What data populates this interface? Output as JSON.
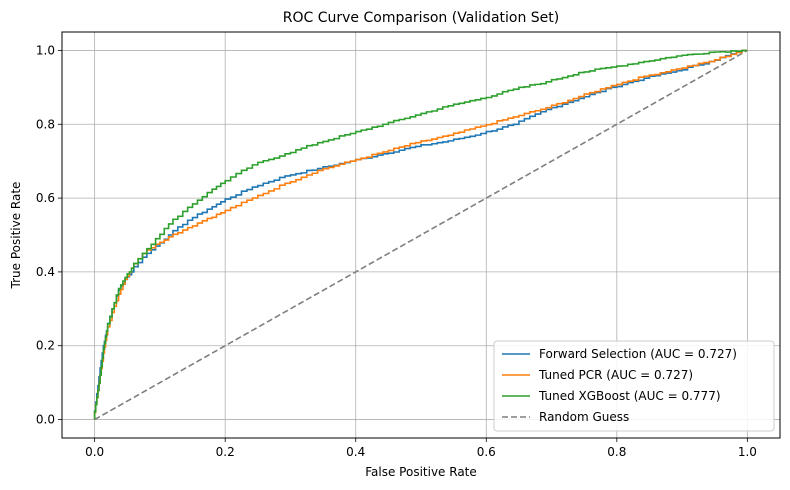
{
  "chart_data": {
    "type": "line",
    "title": "ROC Curve Comparison (Validation Set)",
    "xlabel": "False Positive Rate",
    "ylabel": "True Positive Rate",
    "xlim": [
      -0.05,
      1.05
    ],
    "ylim": [
      -0.05,
      1.05
    ],
    "xticks": [
      "0.0",
      "0.2",
      "0.4",
      "0.6",
      "0.8",
      "1.0"
    ],
    "yticks": [
      "0.0",
      "0.2",
      "0.4",
      "0.6",
      "0.8",
      "1.0"
    ],
    "grid": true,
    "legend_position": "lower-right",
    "series": [
      {
        "name": "Forward Selection (AUC = 0.727)",
        "color": "#1f77b4",
        "dash": "solid",
        "points": [
          [
            0,
            0
          ],
          [
            0.005,
            0.07
          ],
          [
            0.01,
            0.14
          ],
          [
            0.015,
            0.2
          ],
          [
            0.02,
            0.24
          ],
          [
            0.03,
            0.3
          ],
          [
            0.04,
            0.35
          ],
          [
            0.05,
            0.38
          ],
          [
            0.06,
            0.4
          ],
          [
            0.08,
            0.44
          ],
          [
            0.1,
            0.47
          ],
          [
            0.12,
            0.5
          ],
          [
            0.15,
            0.54
          ],
          [
            0.18,
            0.57
          ],
          [
            0.2,
            0.59
          ],
          [
            0.25,
            0.63
          ],
          [
            0.3,
            0.66
          ],
          [
            0.35,
            0.68
          ],
          [
            0.4,
            0.7
          ],
          [
            0.45,
            0.72
          ],
          [
            0.5,
            0.74
          ],
          [
            0.55,
            0.755
          ],
          [
            0.6,
            0.775
          ],
          [
            0.65,
            0.8
          ],
          [
            0.7,
            0.84
          ],
          [
            0.75,
            0.87
          ],
          [
            0.8,
            0.9
          ],
          [
            0.85,
            0.925
          ],
          [
            0.9,
            0.945
          ],
          [
            0.95,
            0.97
          ],
          [
            1.0,
            1.0
          ]
        ]
      },
      {
        "name": "Tuned PCR (AUC = 0.727)",
        "color": "#ff7f0e",
        "dash": "solid",
        "points": [
          [
            0,
            0
          ],
          [
            0.005,
            0.06
          ],
          [
            0.01,
            0.12
          ],
          [
            0.015,
            0.18
          ],
          [
            0.02,
            0.23
          ],
          [
            0.03,
            0.29
          ],
          [
            0.04,
            0.34
          ],
          [
            0.05,
            0.38
          ],
          [
            0.06,
            0.41
          ],
          [
            0.08,
            0.45
          ],
          [
            0.1,
            0.475
          ],
          [
            0.12,
            0.495
          ],
          [
            0.15,
            0.52
          ],
          [
            0.18,
            0.545
          ],
          [
            0.2,
            0.56
          ],
          [
            0.25,
            0.6
          ],
          [
            0.3,
            0.64
          ],
          [
            0.35,
            0.675
          ],
          [
            0.4,
            0.7
          ],
          [
            0.45,
            0.725
          ],
          [
            0.5,
            0.75
          ],
          [
            0.55,
            0.77
          ],
          [
            0.6,
            0.795
          ],
          [
            0.65,
            0.82
          ],
          [
            0.7,
            0.845
          ],
          [
            0.75,
            0.875
          ],
          [
            0.8,
            0.905
          ],
          [
            0.85,
            0.93
          ],
          [
            0.9,
            0.95
          ],
          [
            0.95,
            0.97
          ],
          [
            1.0,
            1.0
          ]
        ]
      },
      {
        "name": "Tuned XGBoost (AUC = 0.777)",
        "color": "#2ca02c",
        "dash": "solid",
        "points": [
          [
            0,
            0
          ],
          [
            0.005,
            0.06
          ],
          [
            0.01,
            0.12
          ],
          [
            0.015,
            0.19
          ],
          [
            0.02,
            0.24
          ],
          [
            0.03,
            0.3
          ],
          [
            0.04,
            0.355
          ],
          [
            0.05,
            0.385
          ],
          [
            0.06,
            0.41
          ],
          [
            0.08,
            0.45
          ],
          [
            0.1,
            0.49
          ],
          [
            0.12,
            0.53
          ],
          [
            0.15,
            0.575
          ],
          [
            0.18,
            0.615
          ],
          [
            0.2,
            0.64
          ],
          [
            0.25,
            0.69
          ],
          [
            0.3,
            0.72
          ],
          [
            0.35,
            0.75
          ],
          [
            0.4,
            0.775
          ],
          [
            0.45,
            0.8
          ],
          [
            0.5,
            0.825
          ],
          [
            0.55,
            0.85
          ],
          [
            0.6,
            0.87
          ],
          [
            0.65,
            0.895
          ],
          [
            0.7,
            0.915
          ],
          [
            0.75,
            0.94
          ],
          [
            0.8,
            0.955
          ],
          [
            0.85,
            0.97
          ],
          [
            0.9,
            0.985
          ],
          [
            0.95,
            0.995
          ],
          [
            1.0,
            1.0
          ]
        ]
      },
      {
        "name": "Random Guess",
        "color": "#7f7f7f",
        "dash": "dashed",
        "points": [
          [
            0,
            0
          ],
          [
            1,
            1
          ]
        ]
      }
    ]
  }
}
